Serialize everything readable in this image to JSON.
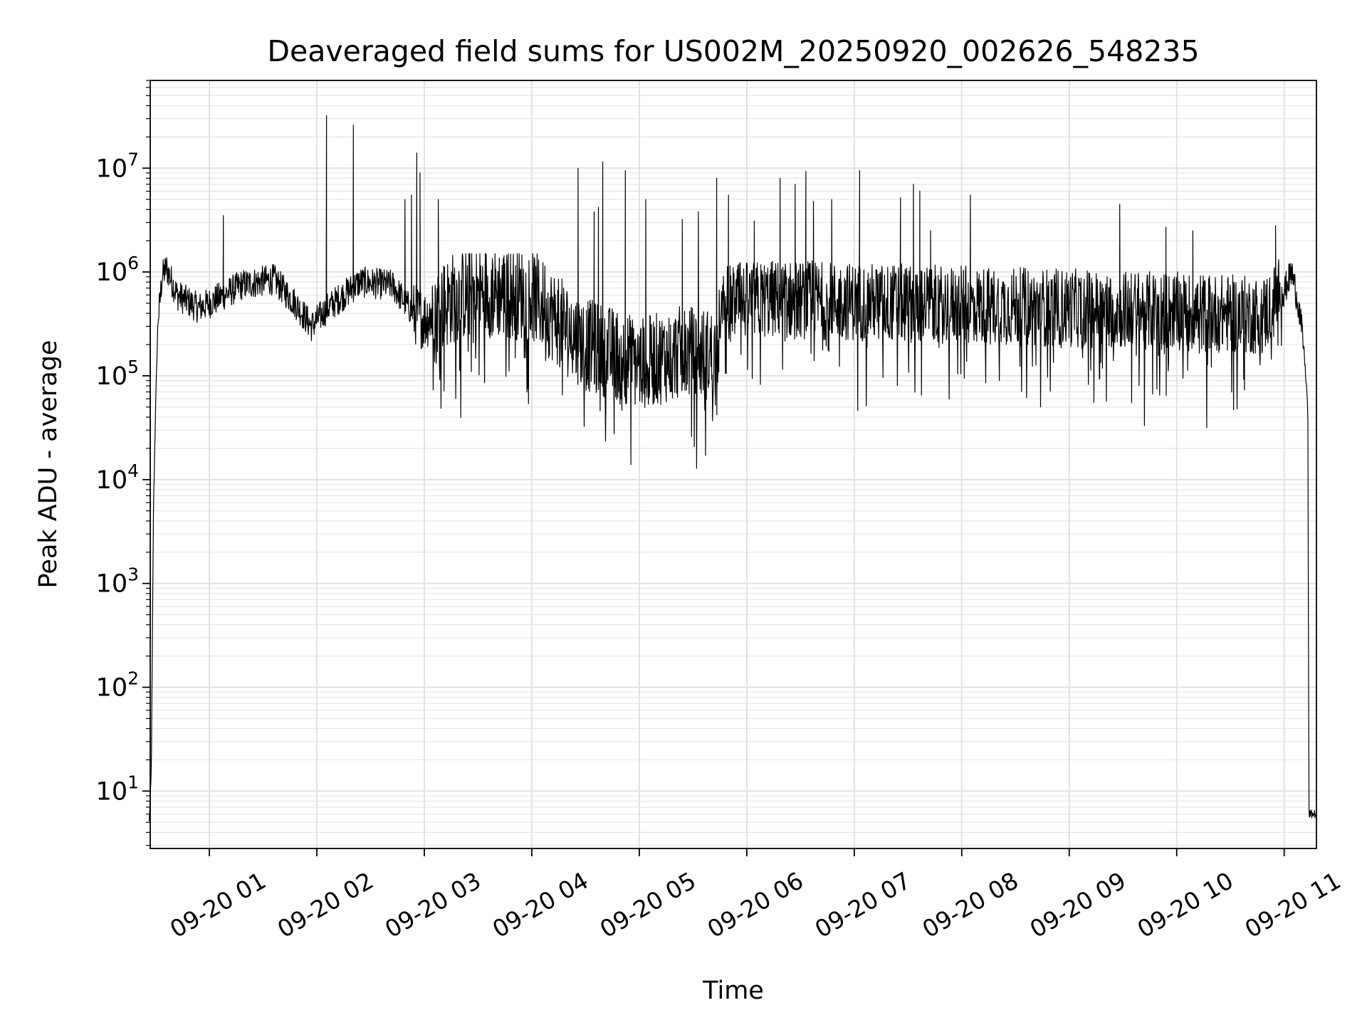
{
  "chart_data": {
    "type": "line",
    "title": "Deaveraged field sums for US002M_20250920_002626_548235",
    "xlabel": "Time",
    "ylabel": "Peak ADU - average",
    "yscale": "log",
    "ylim": [
      2.8,
      70000000
    ],
    "xlim_hours": [
      0.45,
      11.3
    ],
    "grid": true,
    "x_ticks": [
      {
        "hour": 1,
        "label": "09-20 01"
      },
      {
        "hour": 2,
        "label": "09-20 02"
      },
      {
        "hour": 3,
        "label": "09-20 03"
      },
      {
        "hour": 4,
        "label": "09-20 04"
      },
      {
        "hour": 5,
        "label": "09-20 05"
      },
      {
        "hour": 6,
        "label": "09-20 06"
      },
      {
        "hour": 7,
        "label": "09-20 07"
      },
      {
        "hour": 8,
        "label": "09-20 08"
      },
      {
        "hour": 9,
        "label": "09-20 09"
      },
      {
        "hour": 10,
        "label": "09-20 10"
      },
      {
        "hour": 11,
        "label": "09-20 11"
      }
    ],
    "y_ticks": [
      {
        "exp": 1,
        "base": "10",
        "sup": "1"
      },
      {
        "exp": 2,
        "base": "10",
        "sup": "2"
      },
      {
        "exp": 3,
        "base": "10",
        "sup": "3"
      },
      {
        "exp": 4,
        "base": "10",
        "sup": "4"
      },
      {
        "exp": 5,
        "base": "10",
        "sup": "5"
      },
      {
        "exp": 6,
        "base": "10",
        "sup": "6"
      },
      {
        "exp": 7,
        "base": "10",
        "sup": "7"
      }
    ],
    "series": [
      {
        "name": "Peak ADU - average",
        "color": "#000000",
        "baseline_profile": [
          [
            0.44,
            5
          ],
          [
            0.46,
            15
          ],
          [
            0.48,
            5000
          ],
          [
            0.5,
            50000
          ],
          [
            0.52,
            300000
          ],
          [
            0.56,
            900000
          ],
          [
            0.6,
            1100000
          ],
          [
            0.7,
            600000
          ],
          [
            0.9,
            450000
          ],
          [
            1.0,
            500000
          ],
          [
            1.3,
            750000
          ],
          [
            1.6,
            850000
          ],
          [
            1.8,
            500000
          ],
          [
            1.95,
            300000
          ],
          [
            2.1,
            450000
          ],
          [
            2.4,
            800000
          ],
          [
            2.7,
            750000
          ],
          [
            2.9,
            400000
          ],
          [
            3.0,
            350000
          ],
          [
            3.3,
            600000
          ],
          [
            3.6,
            650000
          ],
          [
            4.0,
            600000
          ],
          [
            4.3,
            300000
          ],
          [
            4.5,
            200000
          ],
          [
            4.8,
            160000
          ],
          [
            5.0,
            130000
          ],
          [
            5.4,
            170000
          ],
          [
            5.7,
            160000
          ],
          [
            5.8,
            500000
          ],
          [
            6.2,
            550000
          ],
          [
            7.0,
            520000
          ],
          [
            8.0,
            480000
          ],
          [
            9.0,
            450000
          ],
          [
            10.0,
            420000
          ],
          [
            10.8,
            380000
          ],
          [
            11.0,
            650000
          ],
          [
            11.07,
            1000000
          ],
          [
            11.13,
            500000
          ],
          [
            11.18,
            200000
          ],
          [
            11.22,
            50000
          ],
          [
            11.23,
            6
          ],
          [
            11.3,
            6
          ]
        ],
        "spikes": [
          [
            1.13,
            3500000
          ],
          [
            2.09,
            32000000
          ],
          [
            2.34,
            26000000
          ],
          [
            2.82,
            5000000
          ],
          [
            2.88,
            5500000
          ],
          [
            2.93,
            14000000
          ],
          [
            2.96,
            9000000
          ],
          [
            3.13,
            5000000
          ],
          [
            4.43,
            10000000
          ],
          [
            4.58,
            3800000
          ],
          [
            4.62,
            4200000
          ],
          [
            4.66,
            11500000
          ],
          [
            4.87,
            9500000
          ],
          [
            5.06,
            5000000
          ],
          [
            5.4,
            3200000
          ],
          [
            5.55,
            3800000
          ],
          [
            5.72,
            8000000
          ],
          [
            5.83,
            5500000
          ],
          [
            6.07,
            3100000
          ],
          [
            6.31,
            8000000
          ],
          [
            6.45,
            7000000
          ],
          [
            6.55,
            9300000
          ],
          [
            6.62,
            4800000
          ],
          [
            6.79,
            5000000
          ],
          [
            7.05,
            9500000
          ],
          [
            7.43,
            5200000
          ],
          [
            7.55,
            7000000
          ],
          [
            7.61,
            6000000
          ],
          [
            7.71,
            2500000
          ],
          [
            8.08,
            5500000
          ],
          [
            9.47,
            4500000
          ],
          [
            9.9,
            2700000
          ],
          [
            10.15,
            2500000
          ],
          [
            10.92,
            2800000
          ]
        ]
      }
    ]
  }
}
